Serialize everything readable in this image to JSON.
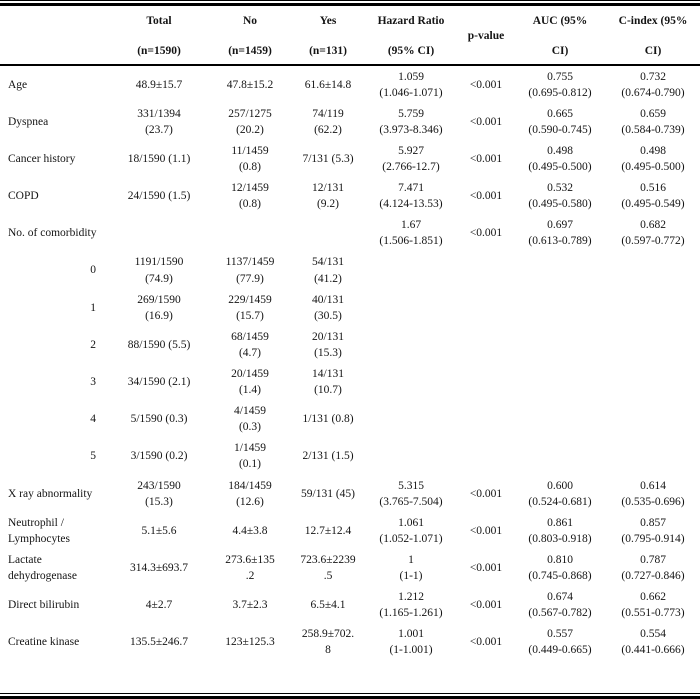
{
  "table": {
    "headers": {
      "total": {
        "line1": "Total",
        "line2": "(n=1590)"
      },
      "no": {
        "line1": "No",
        "line2": "(n=1459)"
      },
      "yes": {
        "line1": "Yes",
        "line2": "(n=131)"
      },
      "hazard": {
        "line1": "Hazard Ratio",
        "line2": "(95% CI)"
      },
      "p_value": "p-value",
      "auc": {
        "line1": "AUC (95%",
        "line2": "CI)"
      },
      "c_index": {
        "line1": "C-index (95%",
        "line2": "CI)"
      }
    },
    "rows": [
      {
        "label": "Age",
        "indent": false,
        "total": "48.9±15.7",
        "no": "47.8±15.2",
        "yes": "61.6±14.8",
        "hr_est": "1.059",
        "hr_ci": "(1.046-1.071)",
        "p": "<0.001",
        "auc_est": "0.755",
        "auc_ci": "(0.695-0.812)",
        "cindex_est": "0.732",
        "cindex_ci": "(0.674-0.790)"
      },
      {
        "label": "Dyspnea",
        "indent": false,
        "total": "331/1394 (23.7)",
        "no": "257/1275 (20.2)",
        "yes": "74/119 (62.2)",
        "hr_est": "5.759",
        "hr_ci": "(3.973-8.346)",
        "p": "<0.001",
        "auc_est": "0.665",
        "auc_ci": "(0.590-0.745)",
        "cindex_est": "0.659",
        "cindex_ci": "(0.584-0.739)"
      },
      {
        "label": "Cancer history",
        "indent": false,
        "total": "18/1590 (1.1)",
        "no": "11/1459 (0.8)",
        "yes": "7/131 (5.3)",
        "hr_est": "5.927",
        "hr_ci": "(2.766-12.7)",
        "p": "<0.001",
        "auc_est": "0.498",
        "auc_ci": "(0.495-0.500)",
        "cindex_est": "0.498",
        "cindex_ci": "(0.495-0.500)"
      },
      {
        "label": "COPD",
        "indent": false,
        "total": "24/1590 (1.5)",
        "no": "12/1459 (0.8)",
        "yes": "12/131 (9.2)",
        "hr_est": "7.471",
        "hr_ci": "(4.124-13.53)",
        "p": "<0.001",
        "auc_est": "0.532",
        "auc_ci": "(0.495-0.580)",
        "cindex_est": "0.516",
        "cindex_ci": "(0.495-0.549)"
      },
      {
        "label": "No. of comorbidity",
        "indent": false,
        "total": "",
        "no": "",
        "yes": "",
        "hr_est": "1.67",
        "hr_ci": "(1.506-1.851)",
        "p": "<0.001",
        "auc_est": "0.697",
        "auc_ci": "(0.613-0.789)",
        "cindex_est": "0.682",
        "cindex_ci": "(0.597-0.772)"
      },
      {
        "label": "0",
        "indent": true,
        "total": "1191/1590 (74.9)",
        "no": "1137/1459 (77.9)",
        "yes": "54/131 (41.2)",
        "hr_est": "",
        "hr_ci": "",
        "p": "",
        "auc_est": "",
        "auc_ci": "",
        "cindex_est": "",
        "cindex_ci": ""
      },
      {
        "label": "1",
        "indent": true,
        "total": "269/1590 (16.9)",
        "no": "229/1459 (15.7)",
        "yes": "40/131 (30.5)",
        "hr_est": "",
        "hr_ci": "",
        "p": "",
        "auc_est": "",
        "auc_ci": "",
        "cindex_est": "",
        "cindex_ci": ""
      },
      {
        "label": "2",
        "indent": true,
        "total": "88/1590 (5.5)",
        "no": "68/1459 (4.7)",
        "yes": "20/131 (15.3)",
        "hr_est": "",
        "hr_ci": "",
        "p": "",
        "auc_est": "",
        "auc_ci": "",
        "cindex_est": "",
        "cindex_ci": ""
      },
      {
        "label": "3",
        "indent": true,
        "total": "34/1590 (2.1)",
        "no": "20/1459 (1.4)",
        "yes": "14/131 (10.7)",
        "hr_est": "",
        "hr_ci": "",
        "p": "",
        "auc_est": "",
        "auc_ci": "",
        "cindex_est": "",
        "cindex_ci": ""
      },
      {
        "label": "4",
        "indent": true,
        "total": "5/1590 (0.3)",
        "no": "4/1459 (0.3)",
        "yes": "1/131 (0.8)",
        "hr_est": "",
        "hr_ci": "",
        "p": "",
        "auc_est": "",
        "auc_ci": "",
        "cindex_est": "",
        "cindex_ci": ""
      },
      {
        "label": "5",
        "indent": true,
        "total": "3/1590 (0.2)",
        "no": "1/1459 (0.1)",
        "yes": "2/131 (1.5)",
        "hr_est": "",
        "hr_ci": "",
        "p": "",
        "auc_est": "",
        "auc_ci": "",
        "cindex_est": "",
        "cindex_ci": ""
      },
      {
        "label": "X ray abnormality",
        "indent": false,
        "total": "243/1590 (15.3)",
        "no": "184/1459 (12.6)",
        "yes": "59/131 (45)",
        "hr_est": "5.315",
        "hr_ci": "(3.765-7.504)",
        "p": "<0.001",
        "auc_est": "0.600",
        "auc_ci": "(0.524-0.681)",
        "cindex_est": "0.614",
        "cindex_ci": "(0.535-0.696)"
      },
      {
        "label": "Neutrophil / Lymphocytes",
        "indent": false,
        "total": "5.1±5.6",
        "no": "4.4±3.8",
        "yes": "12.7±12.4",
        "hr_est": "1.061",
        "hr_ci": "(1.052-1.071)",
        "p": "<0.001",
        "auc_est": "0.861",
        "auc_ci": "(0.803-0.918)",
        "cindex_est": "0.857",
        "cindex_ci": "(0.795-0.914)"
      },
      {
        "label": "Lactate dehydrogenase",
        "indent": false,
        "total": "314.3±693.7",
        "no": "273.6±135.2",
        "yes": "723.6±2239.5",
        "hr_est": "1",
        "hr_ci": "(1-1)",
        "p": "<0.001",
        "auc_est": "0.810",
        "auc_ci": "(0.745-0.868)",
        "cindex_est": "0.787",
        "cindex_ci": "(0.727-0.846)"
      },
      {
        "label": "Direct bilirubin",
        "indent": false,
        "total": "4±2.7",
        "no": "3.7±2.3",
        "yes": "6.5±4.1",
        "hr_est": "1.212",
        "hr_ci": "(1.165-1.261)",
        "p": "<0.001",
        "auc_est": "0.674",
        "auc_ci": "(0.567-0.782)",
        "cindex_est": "0.662",
        "cindex_ci": "(0.551-0.773)"
      },
      {
        "label": "Creatine kinase",
        "indent": false,
        "total": "135.5±246.7",
        "no": "123±125.3",
        "yes": "258.9±702.8",
        "hr_est": "1.001",
        "hr_ci": "(1-1.001)",
        "p": "<0.001",
        "auc_est": "0.557",
        "auc_ci": "(0.449-0.665)",
        "cindex_est": "0.554",
        "cindex_ci": "(0.441-0.666)"
      }
    ]
  }
}
